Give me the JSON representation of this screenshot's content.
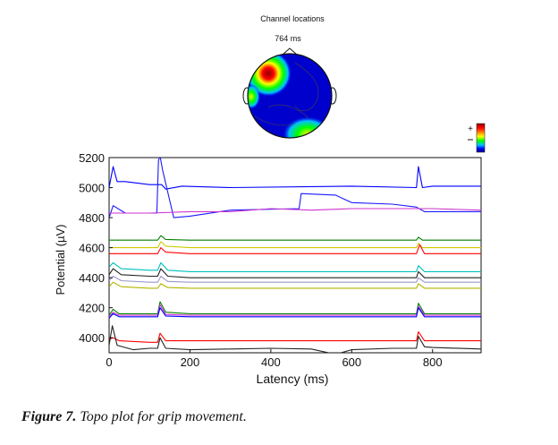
{
  "topo": {
    "title": "Channel locations",
    "time_label": "764 ms",
    "colorbar_plus": "+",
    "colors": [
      "#00008b",
      "#0000ff",
      "#00bfff",
      "#00ff00",
      "#ffff00",
      "#ff8000",
      "#ff0000",
      "#8b0000"
    ]
  },
  "caption": {
    "figure_label": "Figure 7.",
    "text": " Topo plot for grip movement."
  },
  "chart_data": {
    "type": "line",
    "title": "",
    "xlabel": "Latency (ms)",
    "ylabel": "Potential (µV)",
    "xlim": [
      0,
      920
    ],
    "ylim": [
      3900,
      5200
    ],
    "xticks": [
      0,
      200,
      400,
      600,
      800
    ],
    "yticks": [
      4000,
      4200,
      4400,
      4600,
      4800,
      5000,
      5200
    ],
    "grid": false,
    "series": [
      {
        "color": "#0000ff",
        "x": [
          0,
          10,
          20,
          40,
          100,
          130,
          140,
          180,
          300,
          600,
          760,
          765,
          775,
          800,
          920
        ],
        "values": [
          5000,
          5140,
          5040,
          5040,
          5020,
          5020,
          4990,
          5010,
          5000,
          5010,
          5000,
          5140,
          5000,
          5010,
          5010
        ]
      },
      {
        "color": "#1a1aff",
        "x": [
          0,
          10,
          40,
          100,
          118,
          122,
          126,
          132,
          160,
          200,
          300,
          470,
          475,
          560,
          600,
          700,
          760,
          780,
          920
        ],
        "values": [
          4800,
          4880,
          4830,
          4830,
          4830,
          5180,
          5210,
          5120,
          4800,
          4810,
          4850,
          4860,
          4960,
          4950,
          4900,
          4890,
          4870,
          4840,
          4840
        ]
      },
      {
        "color": "#cc33cc",
        "x": [
          0,
          100,
          200,
          300,
          400,
          500,
          600,
          700,
          800,
          920
        ],
        "values": [
          4830,
          4830,
          4840,
          4840,
          4860,
          4850,
          4860,
          4860,
          4860,
          4850
        ]
      },
      {
        "color": "#008000",
        "x": [
          0,
          100,
          120,
          128,
          140,
          200,
          400,
          760,
          765,
          775,
          800,
          920
        ],
        "values": [
          4650,
          4650,
          4650,
          4680,
          4655,
          4650,
          4650,
          4650,
          4670,
          4650,
          4650,
          4650
        ]
      },
      {
        "color": "#cccc00",
        "x": [
          0,
          100,
          120,
          128,
          140,
          200,
          400,
          760,
          765,
          775,
          800,
          920
        ],
        "values": [
          4600,
          4600,
          4600,
          4640,
          4610,
          4600,
          4600,
          4600,
          4630,
          4600,
          4600,
          4600
        ]
      },
      {
        "color": "#ff0000",
        "x": [
          0,
          100,
          120,
          128,
          140,
          200,
          400,
          760,
          768,
          780,
          800,
          920
        ],
        "values": [
          4560,
          4560,
          4560,
          4600,
          4570,
          4560,
          4560,
          4560,
          4620,
          4560,
          4560,
          4560
        ]
      },
      {
        "color": "#00bfbf",
        "x": [
          0,
          10,
          30,
          100,
          120,
          128,
          145,
          200,
          400,
          760,
          765,
          780,
          800,
          920
        ],
        "values": [
          4470,
          4500,
          4460,
          4450,
          4450,
          4500,
          4450,
          4440,
          4440,
          4440,
          4480,
          4440,
          4440,
          4440
        ]
      },
      {
        "color": "#222222",
        "x": [
          0,
          10,
          30,
          100,
          120,
          128,
          145,
          200,
          400,
          760,
          765,
          780,
          800,
          920
        ],
        "values": [
          4420,
          4460,
          4420,
          4410,
          4410,
          4460,
          4410,
          4400,
          4400,
          4400,
          4440,
          4400,
          4400,
          4400
        ]
      },
      {
        "color": "#9999cc",
        "x": [
          0,
          10,
          30,
          100,
          120,
          128,
          145,
          200,
          400,
          760,
          765,
          780,
          800,
          920
        ],
        "values": [
          4380,
          4410,
          4380,
          4370,
          4370,
          4410,
          4375,
          4370,
          4370,
          4370,
          4400,
          4370,
          4370,
          4370
        ]
      },
      {
        "color": "#b3b300",
        "x": [
          0,
          10,
          30,
          100,
          120,
          128,
          145,
          200,
          400,
          760,
          765,
          780,
          800,
          920
        ],
        "values": [
          4340,
          4370,
          4340,
          4330,
          4330,
          4360,
          4335,
          4330,
          4330,
          4330,
          4360,
          4330,
          4330,
          4330
        ]
      },
      {
        "color": "#008000",
        "x": [
          0,
          10,
          25,
          100,
          120,
          126,
          140,
          200,
          400,
          760,
          765,
          780,
          800,
          920
        ],
        "values": [
          4150,
          4190,
          4160,
          4160,
          4160,
          4240,
          4170,
          4160,
          4160,
          4160,
          4230,
          4160,
          4160,
          4160
        ]
      },
      {
        "color": "#cc33cc",
        "x": [
          0,
          10,
          25,
          100,
          120,
          126,
          140,
          200,
          400,
          760,
          765,
          780,
          800,
          920
        ],
        "values": [
          4140,
          4170,
          4150,
          4150,
          4150,
          4220,
          4155,
          4150,
          4150,
          4150,
          4210,
          4150,
          4150,
          4150
        ]
      },
      {
        "color": "#0000ff",
        "x": [
          0,
          10,
          25,
          100,
          120,
          126,
          140,
          200,
          400,
          760,
          765,
          780,
          800,
          920
        ],
        "values": [
          4130,
          4160,
          4140,
          4140,
          4140,
          4200,
          4145,
          4140,
          4140,
          4140,
          4200,
          4140,
          4140,
          4140
        ]
      },
      {
        "color": "#ff0000",
        "x": [
          0,
          10,
          25,
          100,
          120,
          126,
          140,
          200,
          400,
          760,
          765,
          780,
          800,
          920
        ],
        "values": [
          3990,
          4000,
          3980,
          3970,
          3970,
          4030,
          3980,
          3980,
          3980,
          3980,
          4040,
          3980,
          3980,
          3980
        ]
      },
      {
        "color": "#222222",
        "x": [
          0,
          8,
          20,
          60,
          100,
          120,
          126,
          140,
          200,
          300,
          400,
          500,
          560,
          600,
          700,
          760,
          765,
          780,
          800,
          920
        ],
        "values": [
          3950,
          4080,
          3950,
          3920,
          3930,
          3930,
          4000,
          3930,
          3920,
          3925,
          3930,
          3925,
          3890,
          3920,
          3930,
          3930,
          4010,
          3940,
          3935,
          3925
        ]
      }
    ]
  }
}
